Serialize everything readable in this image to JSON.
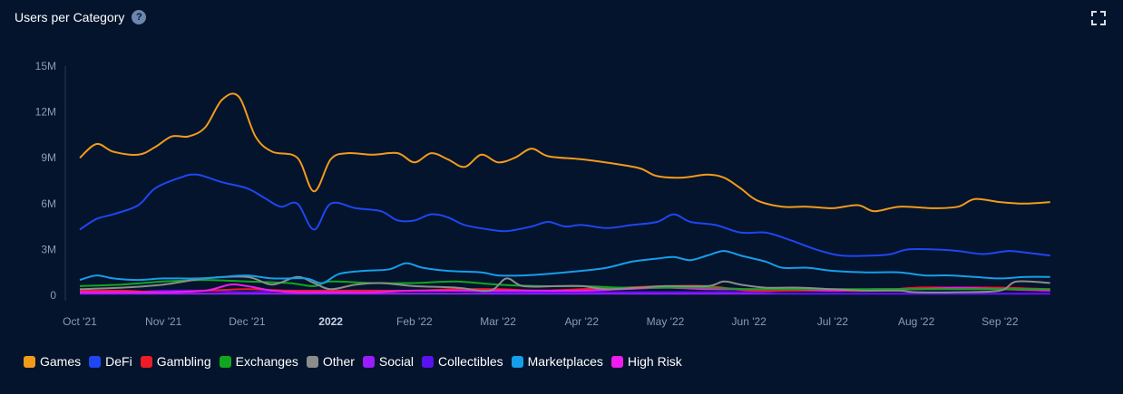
{
  "header": {
    "title": "Users per Category",
    "help_icon": "help-circle-icon",
    "fullscreen_icon": "fullscreen-icon"
  },
  "colors": {
    "background": "#03142c",
    "axis": "#2a3a55",
    "tick": "#8d9bb3"
  },
  "chart_data": {
    "type": "line",
    "title": "Users per Category",
    "xlabel": "",
    "ylabel": "",
    "x_range": [
      0,
      12.2
    ],
    "ylim": [
      0,
      15000000
    ],
    "y_ticks": [
      {
        "value": 0,
        "label": "0"
      },
      {
        "value": 3000000,
        "label": "3M"
      },
      {
        "value": 6000000,
        "label": "6M"
      },
      {
        "value": 9000000,
        "label": "9M"
      },
      {
        "value": 12000000,
        "label": "12M"
      },
      {
        "value": 15000000,
        "label": "15M"
      }
    ],
    "x_ticks": [
      {
        "value": 0,
        "label": "Oct '21",
        "bold": false
      },
      {
        "value": 1,
        "label": "Nov '21",
        "bold": false
      },
      {
        "value": 2,
        "label": "Dec '21",
        "bold": false
      },
      {
        "value": 3,
        "label": "2022",
        "bold": true
      },
      {
        "value": 4,
        "label": "Feb '22",
        "bold": false
      },
      {
        "value": 5,
        "label": "Mar '22",
        "bold": false
      },
      {
        "value": 6,
        "label": "Apr '22",
        "bold": false
      },
      {
        "value": 7,
        "label": "May '22",
        "bold": false
      },
      {
        "value": 8,
        "label": "Jun '22",
        "bold": false
      },
      {
        "value": 9,
        "label": "Jul '22",
        "bold": false
      },
      {
        "value": 10,
        "label": "Aug '22",
        "bold": false
      },
      {
        "value": 11,
        "label": "Sep '22",
        "bold": false
      }
    ],
    "legend_position": "bottom-left",
    "series": [
      {
        "name": "Games",
        "color": "#f39a1c",
        "points": [
          [
            0,
            9.0
          ],
          [
            0.2,
            9.9
          ],
          [
            0.4,
            9.4
          ],
          [
            0.7,
            9.2
          ],
          [
            0.9,
            9.7
          ],
          [
            1.1,
            10.4
          ],
          [
            1.3,
            10.4
          ],
          [
            1.5,
            11.0
          ],
          [
            1.7,
            12.8
          ],
          [
            1.9,
            13.0
          ],
          [
            2.1,
            10.4
          ],
          [
            2.3,
            9.4
          ],
          [
            2.6,
            9.0
          ],
          [
            2.8,
            6.8
          ],
          [
            3.0,
            8.9
          ],
          [
            3.2,
            9.3
          ],
          [
            3.5,
            9.2
          ],
          [
            3.8,
            9.3
          ],
          [
            4.0,
            8.7
          ],
          [
            4.2,
            9.3
          ],
          [
            4.4,
            8.9
          ],
          [
            4.6,
            8.4
          ],
          [
            4.8,
            9.2
          ],
          [
            5.0,
            8.7
          ],
          [
            5.2,
            9.0
          ],
          [
            5.4,
            9.6
          ],
          [
            5.6,
            9.1
          ],
          [
            6.0,
            8.9
          ],
          [
            6.4,
            8.6
          ],
          [
            6.7,
            8.3
          ],
          [
            6.9,
            7.8
          ],
          [
            7.2,
            7.7
          ],
          [
            7.5,
            7.9
          ],
          [
            7.7,
            7.7
          ],
          [
            7.9,
            7.0
          ],
          [
            8.1,
            6.2
          ],
          [
            8.4,
            5.8
          ],
          [
            8.7,
            5.8
          ],
          [
            9.0,
            5.7
          ],
          [
            9.3,
            5.9
          ],
          [
            9.5,
            5.5
          ],
          [
            9.8,
            5.8
          ],
          [
            10.2,
            5.7
          ],
          [
            10.5,
            5.8
          ],
          [
            10.7,
            6.3
          ],
          [
            11.0,
            6.1
          ],
          [
            11.3,
            6.0
          ],
          [
            11.6,
            6.1
          ]
        ]
      },
      {
        "name": "DeFi",
        "color": "#1f46f2",
        "points": [
          [
            0,
            4.3
          ],
          [
            0.2,
            5.0
          ],
          [
            0.4,
            5.3
          ],
          [
            0.7,
            5.9
          ],
          [
            0.9,
            7.0
          ],
          [
            1.2,
            7.7
          ],
          [
            1.4,
            7.9
          ],
          [
            1.7,
            7.4
          ],
          [
            2.0,
            7.0
          ],
          [
            2.2,
            6.4
          ],
          [
            2.4,
            5.8
          ],
          [
            2.6,
            6.0
          ],
          [
            2.8,
            4.3
          ],
          [
            3.0,
            6.0
          ],
          [
            3.3,
            5.7
          ],
          [
            3.6,
            5.5
          ],
          [
            3.8,
            4.9
          ],
          [
            4.0,
            4.9
          ],
          [
            4.2,
            5.3
          ],
          [
            4.4,
            5.1
          ],
          [
            4.6,
            4.6
          ],
          [
            4.9,
            4.3
          ],
          [
            5.1,
            4.2
          ],
          [
            5.4,
            4.5
          ],
          [
            5.6,
            4.8
          ],
          [
            5.8,
            4.5
          ],
          [
            6.0,
            4.6
          ],
          [
            6.3,
            4.4
          ],
          [
            6.6,
            4.6
          ],
          [
            6.9,
            4.8
          ],
          [
            7.1,
            5.3
          ],
          [
            7.3,
            4.8
          ],
          [
            7.6,
            4.6
          ],
          [
            7.9,
            4.1
          ],
          [
            8.2,
            4.1
          ],
          [
            8.5,
            3.6
          ],
          [
            8.8,
            3.0
          ],
          [
            9.1,
            2.6
          ],
          [
            9.5,
            2.6
          ],
          [
            9.7,
            2.7
          ],
          [
            9.9,
            3.0
          ],
          [
            10.2,
            3.0
          ],
          [
            10.5,
            2.9
          ],
          [
            10.8,
            2.7
          ],
          [
            11.1,
            2.9
          ],
          [
            11.3,
            2.8
          ],
          [
            11.6,
            2.6
          ]
        ]
      },
      {
        "name": "Gambling",
        "color": "#ee1c25",
        "points": [
          [
            0,
            0.3
          ],
          [
            0.5,
            0.3
          ],
          [
            1.0,
            0.2
          ],
          [
            1.5,
            0.3
          ],
          [
            2.0,
            0.4
          ],
          [
            2.5,
            0.3
          ],
          [
            3.0,
            0.3
          ],
          [
            3.5,
            0.3
          ],
          [
            4.0,
            0.3
          ],
          [
            4.5,
            0.4
          ],
          [
            5.0,
            0.4
          ],
          [
            5.5,
            0.3
          ],
          [
            6.0,
            0.4
          ],
          [
            6.5,
            0.5
          ],
          [
            7.0,
            0.6
          ],
          [
            7.5,
            0.6
          ],
          [
            8.0,
            0.3
          ],
          [
            8.5,
            0.3
          ],
          [
            9.0,
            0.3
          ],
          [
            9.5,
            0.3
          ],
          [
            10.0,
            0.5
          ],
          [
            10.5,
            0.5
          ],
          [
            11.0,
            0.5
          ],
          [
            11.6,
            0.4
          ]
        ]
      },
      {
        "name": "Exchanges",
        "color": "#12a61f",
        "points": [
          [
            0,
            0.6
          ],
          [
            0.5,
            0.7
          ],
          [
            1.0,
            0.9
          ],
          [
            1.5,
            1.0
          ],
          [
            2.0,
            0.9
          ],
          [
            2.5,
            0.8
          ],
          [
            2.8,
            0.6
          ],
          [
            3.0,
            0.9
          ],
          [
            3.5,
            0.8
          ],
          [
            4.0,
            0.8
          ],
          [
            4.5,
            0.9
          ],
          [
            5.0,
            0.7
          ],
          [
            5.5,
            0.6
          ],
          [
            6.0,
            0.6
          ],
          [
            6.5,
            0.5
          ],
          [
            7.0,
            0.5
          ],
          [
            7.5,
            0.5
          ],
          [
            8.0,
            0.4
          ],
          [
            8.5,
            0.4
          ],
          [
            9.0,
            0.4
          ],
          [
            9.5,
            0.4
          ],
          [
            10.0,
            0.4
          ],
          [
            10.5,
            0.4
          ],
          [
            11.0,
            0.4
          ],
          [
            11.6,
            0.4
          ]
        ]
      },
      {
        "name": "Other",
        "color": "#8c8c8c",
        "points": [
          [
            0,
            0.4
          ],
          [
            0.5,
            0.5
          ],
          [
            1.0,
            0.7
          ],
          [
            1.5,
            1.1
          ],
          [
            2.0,
            1.2
          ],
          [
            2.3,
            0.7
          ],
          [
            2.6,
            1.2
          ],
          [
            2.8,
            0.8
          ],
          [
            3.0,
            0.4
          ],
          [
            3.3,
            0.7
          ],
          [
            3.6,
            0.8
          ],
          [
            4.0,
            0.6
          ],
          [
            4.5,
            0.5
          ],
          [
            4.9,
            0.3
          ],
          [
            5.1,
            1.1
          ],
          [
            5.3,
            0.6
          ],
          [
            5.7,
            0.6
          ],
          [
            6.0,
            0.6
          ],
          [
            6.3,
            0.4
          ],
          [
            6.7,
            0.5
          ],
          [
            7.0,
            0.6
          ],
          [
            7.5,
            0.6
          ],
          [
            7.7,
            0.9
          ],
          [
            7.9,
            0.7
          ],
          [
            8.2,
            0.5
          ],
          [
            8.6,
            0.5
          ],
          [
            9.0,
            0.4
          ],
          [
            9.4,
            0.3
          ],
          [
            9.8,
            0.3
          ],
          [
            10.0,
            0.2
          ],
          [
            10.5,
            0.2
          ],
          [
            11.0,
            0.3
          ],
          [
            11.2,
            0.9
          ],
          [
            11.6,
            0.8
          ]
        ]
      },
      {
        "name": "Social",
        "color": "#9b1cff",
        "points": [
          [
            0,
            0.1
          ],
          [
            1.0,
            0.1
          ],
          [
            2.0,
            0.1
          ],
          [
            3.0,
            0.1
          ],
          [
            4.0,
            0.1
          ],
          [
            5.0,
            0.1
          ],
          [
            6.0,
            0.1
          ],
          [
            7.0,
            0.1
          ],
          [
            8.0,
            0.1
          ],
          [
            9.0,
            0.1
          ],
          [
            10.0,
            0.1
          ],
          [
            11.0,
            0.1
          ],
          [
            11.6,
            0.1
          ]
        ]
      },
      {
        "name": "Collectibles",
        "color": "#5a12ee",
        "points": [
          [
            0,
            0.3
          ],
          [
            0.5,
            0.2
          ],
          [
            1.0,
            0.3
          ],
          [
            1.5,
            0.3
          ],
          [
            2.0,
            0.2
          ],
          [
            2.5,
            0.3
          ],
          [
            3.0,
            0.3
          ],
          [
            3.5,
            0.3
          ],
          [
            4.0,
            0.3
          ],
          [
            4.5,
            0.3
          ],
          [
            5.0,
            0.2
          ],
          [
            5.5,
            0.2
          ],
          [
            6.0,
            0.2
          ],
          [
            6.5,
            0.2
          ],
          [
            7.0,
            0.2
          ],
          [
            7.5,
            0.2
          ],
          [
            8.0,
            0.2
          ],
          [
            8.5,
            0.1
          ],
          [
            9.0,
            0.1
          ],
          [
            9.5,
            0.1
          ],
          [
            10.0,
            0.1
          ],
          [
            10.5,
            0.1
          ],
          [
            11.0,
            0.1
          ],
          [
            11.6,
            0.1
          ]
        ]
      },
      {
        "name": "Marketplaces",
        "color": "#159eea",
        "points": [
          [
            0,
            1.0
          ],
          [
            0.2,
            1.3
          ],
          [
            0.4,
            1.1
          ],
          [
            0.7,
            1.0
          ],
          [
            1.0,
            1.1
          ],
          [
            1.4,
            1.1
          ],
          [
            1.7,
            1.2
          ],
          [
            2.0,
            1.3
          ],
          [
            2.3,
            1.1
          ],
          [
            2.7,
            1.1
          ],
          [
            2.9,
            0.8
          ],
          [
            3.1,
            1.4
          ],
          [
            3.4,
            1.6
          ],
          [
            3.7,
            1.7
          ],
          [
            3.9,
            2.1
          ],
          [
            4.1,
            1.8
          ],
          [
            4.4,
            1.6
          ],
          [
            4.8,
            1.5
          ],
          [
            5.0,
            1.3
          ],
          [
            5.3,
            1.3
          ],
          [
            5.6,
            1.4
          ],
          [
            6.0,
            1.6
          ],
          [
            6.3,
            1.8
          ],
          [
            6.6,
            2.2
          ],
          [
            6.9,
            2.4
          ],
          [
            7.1,
            2.5
          ],
          [
            7.3,
            2.3
          ],
          [
            7.5,
            2.6
          ],
          [
            7.7,
            2.9
          ],
          [
            7.9,
            2.6
          ],
          [
            8.2,
            2.2
          ],
          [
            8.4,
            1.8
          ],
          [
            8.7,
            1.8
          ],
          [
            9.0,
            1.6
          ],
          [
            9.4,
            1.5
          ],
          [
            9.8,
            1.5
          ],
          [
            10.1,
            1.3
          ],
          [
            10.4,
            1.3
          ],
          [
            10.7,
            1.2
          ],
          [
            11.0,
            1.1
          ],
          [
            11.3,
            1.2
          ],
          [
            11.6,
            1.2
          ]
        ]
      },
      {
        "name": "High Risk",
        "color": "#ee1cee",
        "points": [
          [
            0,
            0.2
          ],
          [
            0.5,
            0.2
          ],
          [
            1.0,
            0.2
          ],
          [
            1.5,
            0.3
          ],
          [
            1.8,
            0.7
          ],
          [
            2.0,
            0.6
          ],
          [
            2.3,
            0.3
          ],
          [
            2.6,
            0.2
          ],
          [
            3.0,
            0.2
          ],
          [
            3.5,
            0.2
          ],
          [
            4.0,
            0.3
          ],
          [
            4.5,
            0.3
          ],
          [
            5.0,
            0.3
          ],
          [
            5.5,
            0.3
          ],
          [
            6.0,
            0.3
          ],
          [
            6.5,
            0.4
          ],
          [
            7.0,
            0.5
          ],
          [
            7.5,
            0.4
          ],
          [
            8.0,
            0.4
          ],
          [
            8.5,
            0.4
          ],
          [
            9.0,
            0.3
          ],
          [
            9.5,
            0.4
          ],
          [
            10.0,
            0.4
          ],
          [
            10.5,
            0.5
          ],
          [
            11.0,
            0.4
          ],
          [
            11.6,
            0.3
          ]
        ]
      }
    ]
  }
}
